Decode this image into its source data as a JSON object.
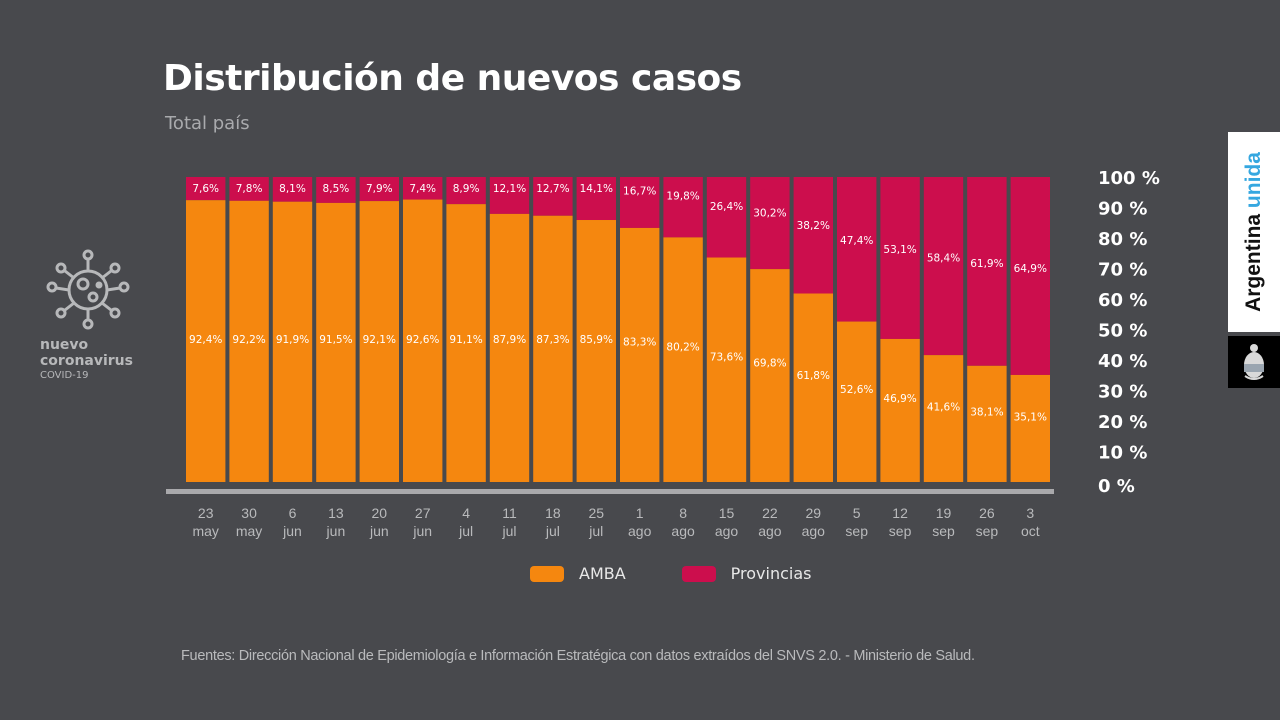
{
  "header": {
    "title": "Distribución de nuevos casos",
    "subtitle": "Total país"
  },
  "logo": {
    "icon": "coronavirus-icon",
    "line1": "nuevo",
    "line2": "coronavirus",
    "line3": "COVID-19"
  },
  "brand": {
    "text_main": "Argentina",
    "text_accent": "unida",
    "emblem": "coat-of-arms-icon",
    "accent_color": "#35a7e0"
  },
  "legend": {
    "items": [
      {
        "label": "AMBA",
        "color": "#f5870f"
      },
      {
        "label": "Provincias",
        "color": "#cc0e4d"
      }
    ]
  },
  "source": "Fuentes: Dirección Nacional de Epidemiología e Información Estratégica con datos extraídos del SNVS 2.0. - Ministerio de Salud.",
  "chart_data": {
    "type": "bar",
    "stacked": true,
    "title": "Distribución de nuevos casos",
    "subtitle": "Total país",
    "xlabel": "",
    "ylabel": "",
    "ylim": [
      0,
      100
    ],
    "y_axis_position": "right",
    "y_ticks": [
      "100 %",
      "90 %",
      "80 %",
      "70 %",
      "60 %",
      "50 %",
      "40 %",
      "30 %",
      "20 %",
      "10 %",
      "0 %"
    ],
    "legend_position": "bottom",
    "grid": false,
    "categories": [
      [
        "23",
        "may"
      ],
      [
        "30",
        "may"
      ],
      [
        "6",
        "jun"
      ],
      [
        "13",
        "jun"
      ],
      [
        "20",
        "jun"
      ],
      [
        "27",
        "jun"
      ],
      [
        "4",
        "jul"
      ],
      [
        "11",
        "jul"
      ],
      [
        "18",
        "jul"
      ],
      [
        "25",
        "jul"
      ],
      [
        "1",
        "ago"
      ],
      [
        "8",
        "ago"
      ],
      [
        "15",
        "ago"
      ],
      [
        "22",
        "ago"
      ],
      [
        "29",
        "ago"
      ],
      [
        "5",
        "sep"
      ],
      [
        "12",
        "sep"
      ],
      [
        "19",
        "sep"
      ],
      [
        "26",
        "sep"
      ],
      [
        "3",
        "oct"
      ]
    ],
    "series": [
      {
        "name": "AMBA",
        "color": "#f5870f",
        "values": [
          92.4,
          92.2,
          91.9,
          91.5,
          92.1,
          92.6,
          91.1,
          87.9,
          87.3,
          85.9,
          83.3,
          80.2,
          73.6,
          69.8,
          61.8,
          52.6,
          46.9,
          41.6,
          38.1,
          35.1
        ],
        "labels": [
          "92,4%",
          "92,2%",
          "91,9%",
          "91,5%",
          "92,1%",
          "92,6%",
          "91,1%",
          "87,9%",
          "87,3%",
          "85,9%",
          "83,3%",
          "80,2%",
          "73,6%",
          "69,8%",
          "61,8%",
          "52,6%",
          "46,9%",
          "41,6%",
          "38,1%",
          "35,1%"
        ]
      },
      {
        "name": "Provincias",
        "color": "#cc0e4d",
        "values": [
          7.6,
          7.8,
          8.1,
          8.5,
          7.9,
          7.4,
          8.9,
          12.1,
          12.7,
          14.1,
          16.7,
          19.8,
          26.4,
          30.2,
          38.2,
          47.4,
          53.1,
          58.4,
          61.9,
          64.9
        ],
        "labels": [
          "7,6%",
          "7,8%",
          "8,1%",
          "8,5%",
          "7,9%",
          "7,4%",
          "8,9%",
          "12,1%",
          "12,7%",
          "14,1%",
          "16,7%",
          "19,8%",
          "26,4%",
          "30,2%",
          "38,2%",
          "47,4%",
          "53,1%",
          "58,4%",
          "61,9%",
          "64,9%"
        ]
      }
    ]
  }
}
